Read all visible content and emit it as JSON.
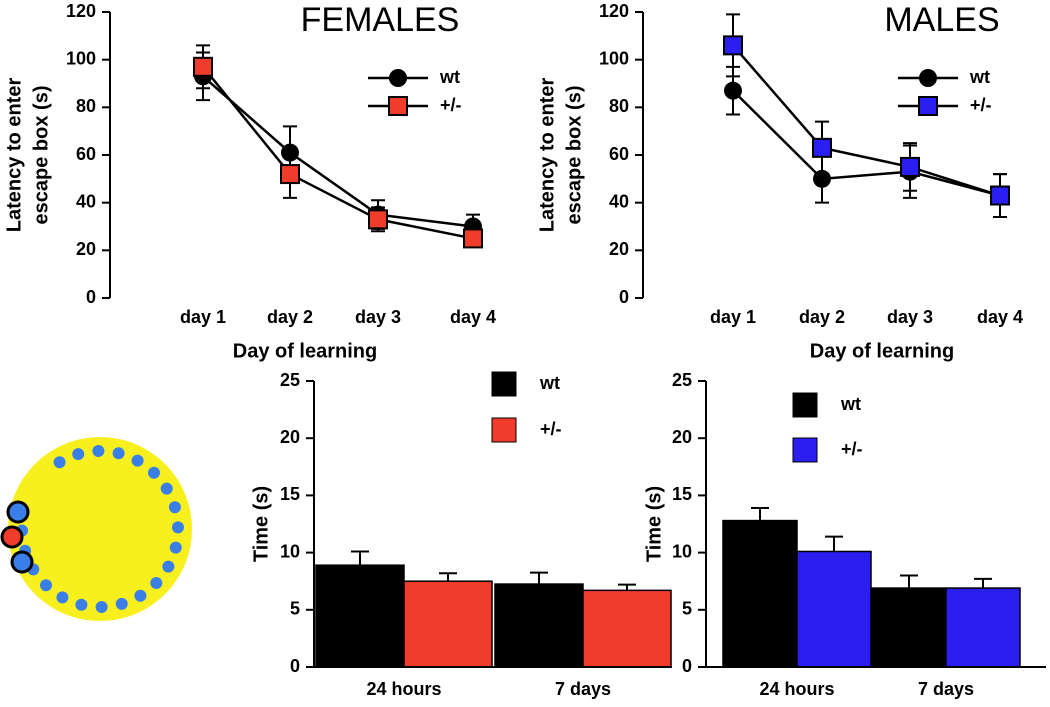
{
  "chart_data": [
    {
      "type": "line",
      "title": "FEMALES",
      "ylabel": [
        "Latency to enter",
        "escape box (s)"
      ],
      "xlabel": "Day of learning",
      "categories": [
        "day 1",
        "day 2",
        "day 3",
        "day 4"
      ],
      "series": [
        {
          "name": "wt",
          "color": "#000000",
          "marker": "circle",
          "values": [
            93,
            61,
            35,
            30
          ],
          "errors": [
            10,
            11,
            6,
            5
          ]
        },
        {
          "name": "+/-",
          "color": "#f03c2a",
          "marker": "square",
          "values": [
            97,
            52,
            33,
            25
          ],
          "errors": [
            9,
            10,
            5,
            3
          ]
        }
      ],
      "ylim": [
        0,
        120
      ],
      "yticks": [
        0,
        20,
        40,
        60,
        80,
        100,
        120
      ]
    },
    {
      "type": "line",
      "title": "MALES",
      "ylabel": [
        "Latency to enter",
        "escape box (s)"
      ],
      "xlabel": "Day of learning",
      "categories": [
        "day 1",
        "day 2",
        "day 3",
        "day 4"
      ],
      "series": [
        {
          "name": "wt",
          "color": "#000000",
          "marker": "circle",
          "values": [
            87,
            50,
            53,
            43
          ],
          "errors": [
            10,
            10,
            11,
            9
          ]
        },
        {
          "name": "+/-",
          "color": "#2a1ff0",
          "marker": "square",
          "values": [
            106,
            63,
            55,
            43
          ],
          "errors": [
            13,
            11,
            10,
            9
          ]
        }
      ],
      "ylim": [
        0,
        120
      ],
      "yticks": [
        0,
        20,
        40,
        60,
        80,
        100,
        120
      ]
    },
    {
      "type": "bar",
      "ylabel": "Time (s)",
      "categories": [
        "24 hours",
        "7 days"
      ],
      "series": [
        {
          "name": "wt",
          "color": "#000000",
          "values": [
            8.9,
            7.25
          ],
          "errors": [
            1.2,
            1.0
          ]
        },
        {
          "name": "+/-",
          "color": "#f03c2a",
          "values": [
            7.5,
            6.7
          ],
          "errors": [
            0.7,
            0.5
          ]
        }
      ],
      "ylim": [
        0,
        25
      ],
      "yticks": [
        0,
        5,
        10,
        15,
        20,
        25
      ]
    },
    {
      "type": "bar",
      "ylabel": "Time (s)",
      "categories": [
        "24 hours",
        "7 days"
      ],
      "series": [
        {
          "name": "wt",
          "color": "#000000",
          "values": [
            12.8,
            6.9
          ],
          "errors": [
            1.1,
            1.1
          ]
        },
        {
          "name": "+/-",
          "color": "#2a1ff0",
          "values": [
            10.1,
            6.9
          ],
          "errors": [
            1.3,
            0.8
          ]
        }
      ],
      "ylim": [
        0,
        25
      ],
      "yticks": [
        0,
        5,
        10,
        15,
        20,
        25
      ]
    }
  ]
}
